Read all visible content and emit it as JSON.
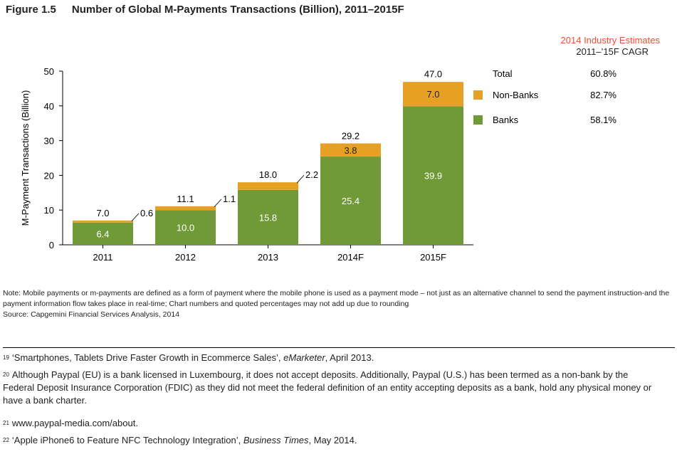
{
  "header": {
    "figure": "Figure 1.5",
    "title": "Number of Global M-Payments Transactions (Billion), 2011–2015F"
  },
  "estimates_label": "2014 Industry Estimates",
  "cagr_label": "2011–’15F CAGR",
  "chart_data": {
    "type": "bar",
    "stacked": true,
    "categories": [
      "2011",
      "2012",
      "2013",
      "2014F",
      "2015F"
    ],
    "series": [
      {
        "name": "Banks",
        "values": [
          6.4,
          10.0,
          15.8,
          25.4,
          39.9
        ],
        "labels": [
          "6.4",
          "10.0",
          "15.8",
          "25.4",
          "39.9"
        ],
        "color": "#6f9a37",
        "cagr": "58.1%"
      },
      {
        "name": "Non-Banks",
        "values": [
          0.6,
          1.1,
          2.2,
          3.8,
          7.0
        ],
        "labels": [
          "0.6",
          "1.1",
          "2.2",
          "3.8",
          "7.0"
        ],
        "color": "#e6a024",
        "cagr": "82.7%"
      }
    ],
    "totals": {
      "name": "Total",
      "values": [
        7.0,
        11.1,
        18.0,
        29.2,
        47.0
      ],
      "labels": [
        "7.0",
        "11.1",
        "18.0",
        "29.2",
        "47.0"
      ],
      "cagr": "60.8%"
    },
    "ylabel": "M-Payment Transactions (Billion)",
    "ylim": [
      0,
      50
    ],
    "yticks": [
      "0",
      "10",
      "20",
      "30",
      "40",
      "50"
    ],
    "grid": false,
    "legend": "right"
  },
  "note": "Note: Mobile payments or m-payments are defined as a form of payment where the mobile phone is used as a payment mode – not just as an alternative channel to send the payment instruction-and the payment information flow takes place in real-time; Chart numbers and quoted percentages may not add up due to rounding",
  "source": "Source: Capgemini Financial Services Analysis, 2014",
  "footnotes": [
    {
      "num": "19",
      "pre": "‘Smartphones, Tablets Drive Faster Growth in Ecommerce Sales’, ",
      "ital": "eMarketer",
      "post": ", April 2013."
    },
    {
      "num": "20",
      "pre": "Although Paypal (EU) is a bank licensed in Luxembourg, it does not accept deposits. Additionally, Paypal (U.S.) has been termed as a non-bank by the Federal Deposit Insurance Corporation (FDIC) as they did not meet the federal definition of an entity accepting deposits as a bank, hold any physical money or have a bank charter.",
      "ital": "",
      "post": ""
    },
    {
      "num": "21",
      "pre": "www.paypal-media.com/about.",
      "ital": "",
      "post": ""
    },
    {
      "num": "22",
      "pre": "‘Apple iPhone6 to Feature NFC Technology Integration’, ",
      "ital": "Business Times",
      "post": ", May 2014."
    }
  ]
}
